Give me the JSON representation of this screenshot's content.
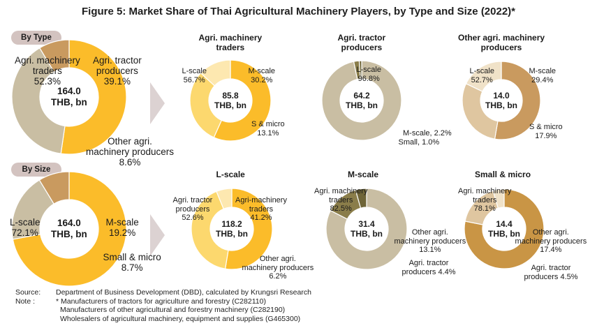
{
  "title": "Figure 5: Market Share of Thai Agricultural Machinery Players, by Type and Size (2022)*",
  "section_labels": {
    "by_type": "By Type",
    "by_size": "By Size"
  },
  "colors": {
    "gold": "#fbbc2a",
    "tan": "#c9bea3",
    "brown": "#c99a5f",
    "light_gold": "#fcd86e",
    "pale_gold": "#fde8b0",
    "olive": "#8a7d4a",
    "dark_olive": "#6f6538",
    "light_tan": "#dfc6a0",
    "pale_tan": "#f0e2c8",
    "brown_mid": "#c99545",
    "arrow": "#dcd2d2"
  },
  "chart_data": [
    {
      "id": "type_total",
      "type": "pie",
      "title": "",
      "center": [
        "164.0",
        "THB, bn"
      ],
      "slices": [
        {
          "name": "Agri. machinery traders",
          "value": 52.3,
          "label": [
            "Agri. machinery",
            "traders",
            "52.3%"
          ]
        },
        {
          "name": "Agri. tractor producers",
          "value": 39.1,
          "label": [
            "Agri. tractor",
            "producers",
            "39.1%"
          ]
        },
        {
          "name": "Other agri. machinery producers",
          "value": 8.6,
          "label": [
            "Other agri.",
            "machinery producers",
            "8.6%"
          ]
        }
      ]
    },
    {
      "id": "traders",
      "type": "pie",
      "title": [
        "Agri. machinery",
        "traders"
      ],
      "center": [
        "85.8",
        "THB, bn"
      ],
      "slices": [
        {
          "name": "L-scale",
          "value": 56.7,
          "label": [
            "L-scale",
            "56.7%"
          ]
        },
        {
          "name": "M-scale",
          "value": 30.2,
          "label": [
            "M-scale",
            "30.2%"
          ]
        },
        {
          "name": "S & micro",
          "value": 13.1,
          "label": [
            "S & micro",
            "13.1%"
          ]
        }
      ]
    },
    {
      "id": "tractor",
      "type": "pie",
      "title": [
        "Agri. tractor",
        "producers"
      ],
      "center": [
        "64.2",
        "THB, bn"
      ],
      "slices": [
        {
          "name": "L-scale",
          "value": 96.8,
          "label": [
            "L-scale",
            "96.8%"
          ]
        },
        {
          "name": "M-scale",
          "value": 2.2,
          "label": [
            "M-scale, 2.2%"
          ]
        },
        {
          "name": "Small",
          "value": 1.0,
          "label": [
            "Small, 1.0%"
          ]
        }
      ]
    },
    {
      "id": "other",
      "type": "pie",
      "title": [
        "Other agri. machinery",
        "producers"
      ],
      "center": [
        "14.0",
        "THB, bn"
      ],
      "slices": [
        {
          "name": "L-scale",
          "value": 52.7,
          "label": [
            "L-scale",
            "52.7%"
          ]
        },
        {
          "name": "M-scale",
          "value": 29.4,
          "label": [
            "M-scale",
            "29.4%"
          ]
        },
        {
          "name": "S & micro",
          "value": 17.9,
          "label": [
            "S & micro",
            "17.9%"
          ]
        }
      ]
    },
    {
      "id": "size_total",
      "type": "pie",
      "title": "",
      "center": [
        "164.0",
        "THB, bn"
      ],
      "slices": [
        {
          "name": "L-scale",
          "value": 72.1,
          "label": [
            "L-scale",
            "72.1%"
          ]
        },
        {
          "name": "M-scale",
          "value": 19.2,
          "label": [
            "M-scale",
            "19.2%"
          ]
        },
        {
          "name": "Small & micro",
          "value": 8.7,
          "label": [
            "Small & micro",
            "8.7%"
          ]
        }
      ]
    },
    {
      "id": "lscale",
      "type": "pie",
      "title": [
        "L-scale"
      ],
      "center": [
        "118.2",
        "THB, bn"
      ],
      "slices": [
        {
          "name": "Agri. tractor producers",
          "value": 52.6,
          "label": [
            "Agri. tractor",
            "producers",
            "52.6%"
          ]
        },
        {
          "name": "Agri-machinery traders",
          "value": 41.2,
          "label": [
            "Agri-machinery",
            "traders",
            "41.2%"
          ]
        },
        {
          "name": "Other agri. machinery producers",
          "value": 6.2,
          "label": [
            "Other agri.",
            "machinery producers",
            "6.2%"
          ]
        }
      ]
    },
    {
      "id": "mscale",
      "type": "pie",
      "title": [
        "M-scale"
      ],
      "center": [
        "31.4",
        "THB, bn"
      ],
      "slices": [
        {
          "name": "Agri. machinery traders",
          "value": 82.5,
          "label": [
            "Agri. machinery",
            "traders",
            "82.5%"
          ]
        },
        {
          "name": "Other agri. machinery producers",
          "value": 13.1,
          "label": [
            "Other agri.",
            "machinery producers",
            "13.1%"
          ]
        },
        {
          "name": "Agri. tractor producers",
          "value": 4.4,
          "label": [
            "Agri. tractor",
            "producers 4.4%"
          ]
        }
      ]
    },
    {
      "id": "small",
      "type": "pie",
      "title": [
        "Small & micro"
      ],
      "center": [
        "14.4",
        "THB, bn"
      ],
      "slices": [
        {
          "name": "Agri. machinery traders",
          "value": 78.1,
          "label": [
            "Agri. machinery",
            "traders",
            "78.1%"
          ]
        },
        {
          "name": "Other agri. machinery producers",
          "value": 17.4,
          "label": [
            "Other agri.",
            "machinery producers",
            "17.4%"
          ]
        },
        {
          "name": "Agri. tractor producers",
          "value": 4.5,
          "label": [
            "Agri. tractor",
            "producers 4.5%"
          ]
        }
      ]
    }
  ],
  "footer": {
    "source_key": "Source:",
    "source_text": "Department of Business Development (DBD), calculated by Krungsri Research",
    "note_key": "Note :",
    "notes": [
      "* Manufacturers of tractors for agriculture and forestry (C282110)",
      "Manufacturers of other agricultural and forestry machinery (C282190)",
      "Wholesalers of agricultural machinery, equipment and supplies (G465300)"
    ]
  }
}
